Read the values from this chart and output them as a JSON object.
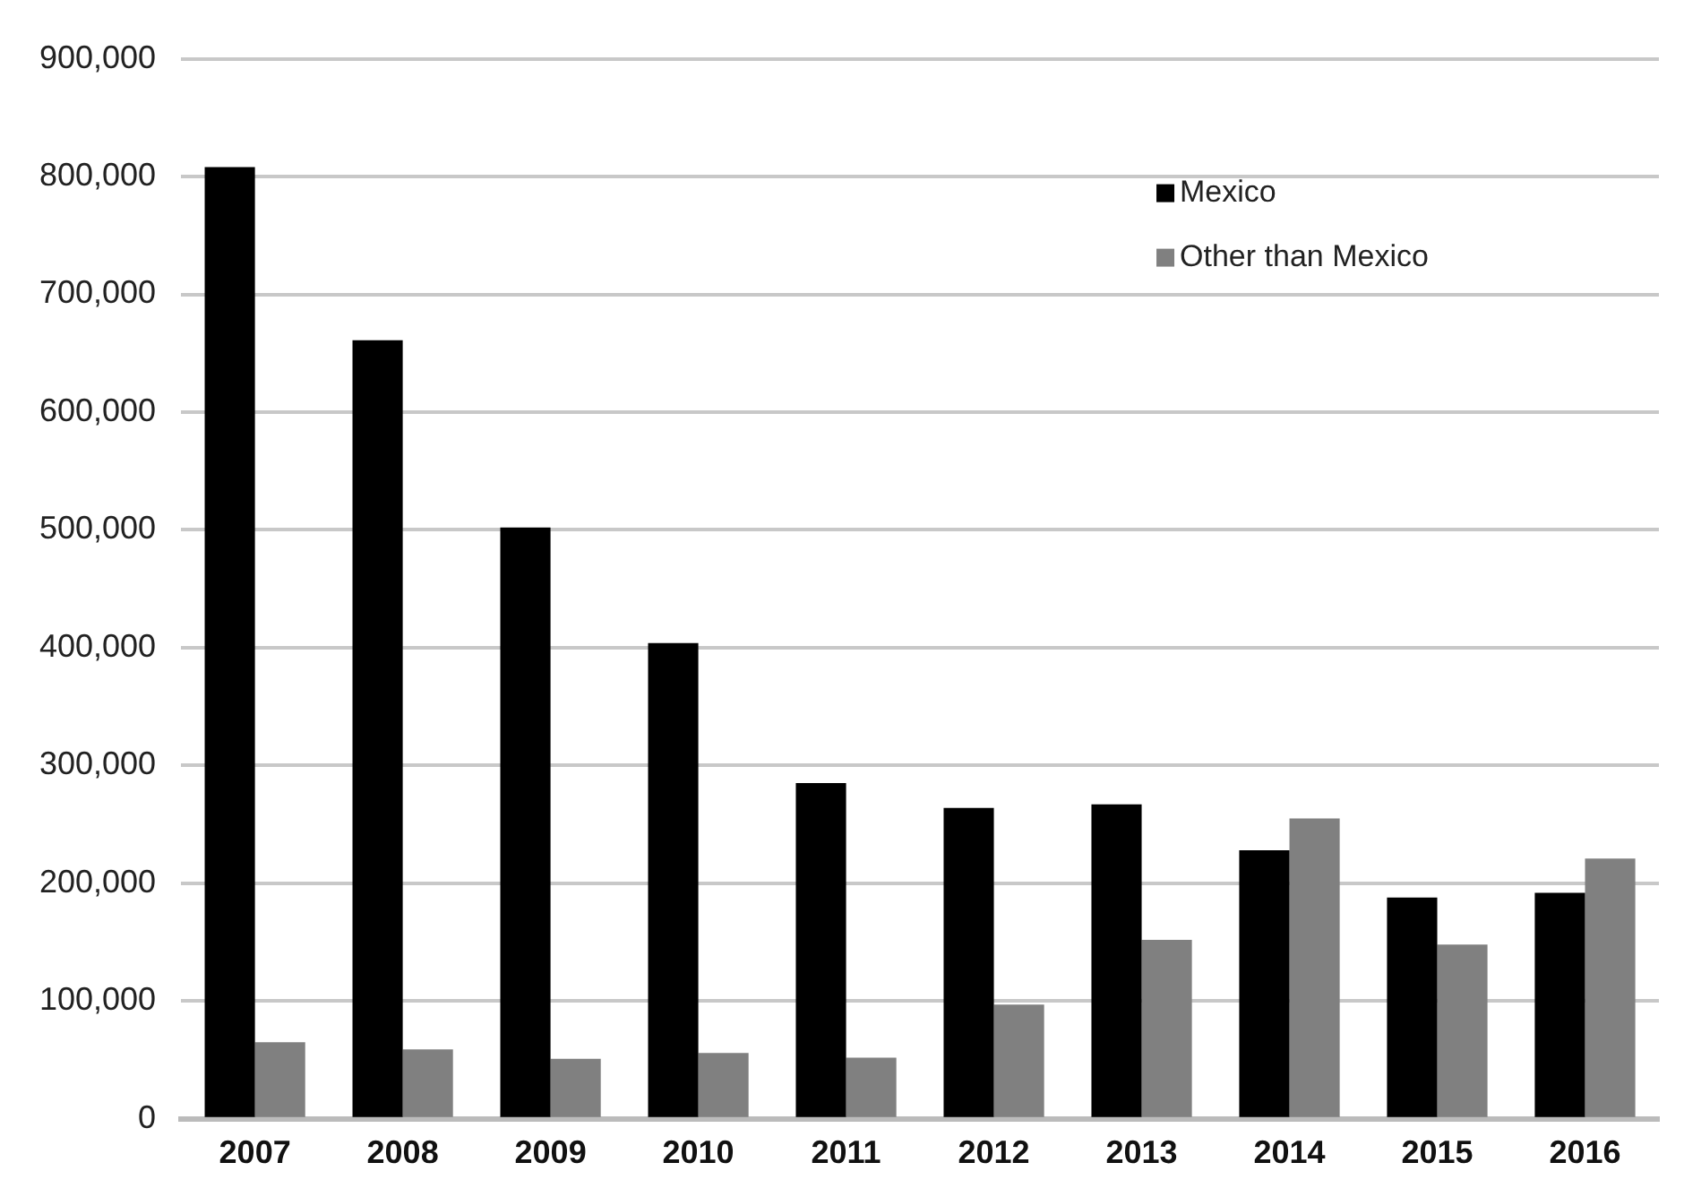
{
  "chart_data": {
    "type": "bar",
    "categories": [
      "2007",
      "2008",
      "2009",
      "2010",
      "2011",
      "2012",
      "2013",
      "2014",
      "2015",
      "2016"
    ],
    "series": [
      {
        "name": "Mexico",
        "color": "#000000",
        "values": [
          808000,
          661000,
          502000,
          404000,
          285000,
          264000,
          267000,
          228000,
          188000,
          192000
        ]
      },
      {
        "name": "Other than Mexico",
        "color": "#808080",
        "values": [
          65000,
          59000,
          51000,
          56000,
          52000,
          97000,
          152000,
          255000,
          148000,
          221000
        ]
      }
    ],
    "ylim": [
      0,
      900000
    ],
    "yticks": [
      0,
      {
        "value": 100000,
        "label": "100,000"
      },
      {
        "value": 200000,
        "label": "200,000"
      },
      {
        "value": 300000,
        "label": "300,000"
      },
      {
        "value": 400000,
        "label": "400,000"
      },
      {
        "value": 500000,
        "label": "500,000"
      },
      {
        "value": 600000,
        "label": "600,000"
      },
      {
        "value": 700000,
        "label": "700,000"
      },
      {
        "value": 800000,
        "label": "800,000"
      },
      {
        "value": 900000,
        "label": "900,000"
      }
    ],
    "grid": "y",
    "legend": "top right"
  }
}
